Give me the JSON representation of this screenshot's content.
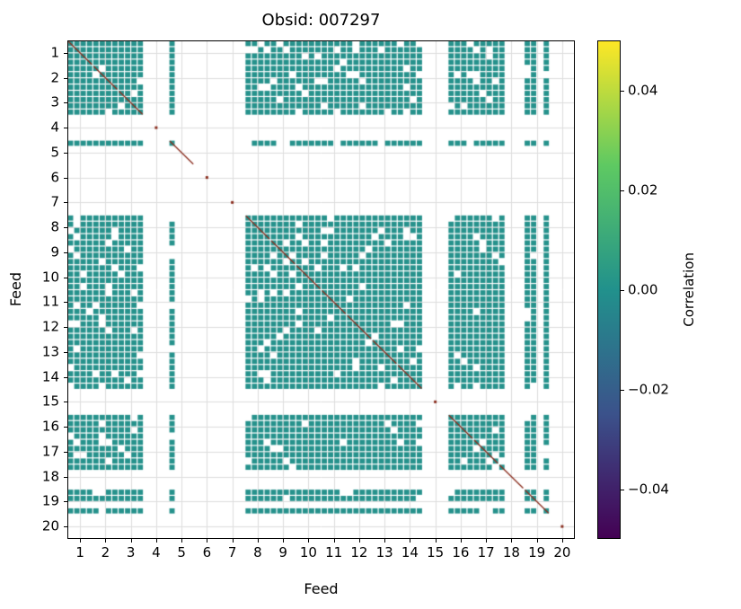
{
  "chart_data": {
    "type": "heatmap",
    "title": "Obsid: 007297",
    "xlabel": "Feed",
    "ylabel": "Feed",
    "x_ticks": [
      "1",
      "2",
      "3",
      "4",
      "5",
      "6",
      "7",
      "8",
      "9",
      "10",
      "11",
      "12",
      "13",
      "14",
      "15",
      "16",
      "17",
      "18",
      "19",
      "20"
    ],
    "y_ticks": [
      "1",
      "2",
      "3",
      "4",
      "5",
      "6",
      "7",
      "8",
      "9",
      "10",
      "11",
      "12",
      "13",
      "14",
      "15",
      "16",
      "17",
      "18",
      "19",
      "20"
    ],
    "n_feeds": 20,
    "subbands_per_feed": 4,
    "active_subbands": [
      [
        1,
        1,
        1,
        1
      ],
      [
        1,
        1,
        1,
        1
      ],
      [
        1,
        1,
        1,
        1
      ],
      [
        0,
        0,
        0,
        0
      ],
      [
        1,
        0,
        0,
        0
      ],
      [
        0,
        0,
        0,
        0
      ],
      [
        0,
        0,
        0,
        0
      ],
      [
        1,
        1,
        1,
        1
      ],
      [
        1,
        1,
        1,
        1
      ],
      [
        1,
        1,
        1,
        1
      ],
      [
        1,
        1,
        1,
        1
      ],
      [
        1,
        1,
        1,
        1
      ],
      [
        1,
        1,
        1,
        1
      ],
      [
        1,
        1,
        1,
        1
      ],
      [
        0,
        0,
        0,
        0
      ],
      [
        1,
        1,
        1,
        1
      ],
      [
        1,
        1,
        1,
        1
      ],
      [
        1,
        0,
        0,
        0
      ],
      [
        1,
        1,
        0,
        1
      ],
      [
        0,
        0,
        0,
        0
      ]
    ],
    "offdiagonal_value": 0.0,
    "diagonal_value": 1.0,
    "sparsity": 0.08,
    "value_range_displayed": [
      -0.05,
      0.05
    ],
    "colors": {
      "cell": "#26928c",
      "diagonal": "#8b2f20",
      "grid": "#dddddd"
    },
    "colorbar": {
      "label": "Correlation",
      "tick_labels": [
        "0.04",
        "0.02",
        "0.00",
        "−0.02",
        "−0.04"
      ],
      "tick_values": [
        0.04,
        0.02,
        0.0,
        -0.02,
        -0.04
      ],
      "vmin": -0.05,
      "vmax": 0.05,
      "colormap": "viridis",
      "gradient_stops": [
        "#fde725",
        "#5ec962",
        "#21918c",
        "#3b528b",
        "#440154"
      ]
    }
  }
}
